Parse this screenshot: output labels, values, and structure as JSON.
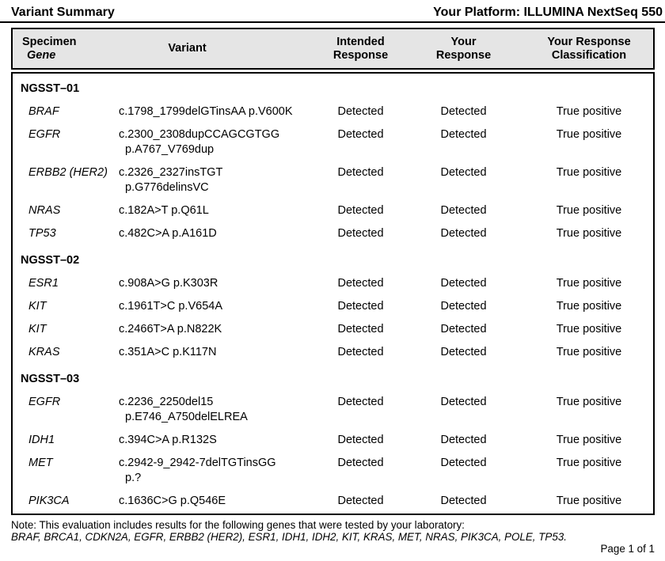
{
  "header": {
    "title": "Variant Summary",
    "platform": "Your Platform: ILLUMINA NextSeq 550"
  },
  "table": {
    "columns": {
      "specimen": "Specimen",
      "gene": "Gene",
      "variant": "Variant",
      "intended": "Intended\nResponse",
      "your_response": "Your\nResponse",
      "classification": "Your Response\nClassification"
    },
    "sections": [
      {
        "name": "NGSST–01",
        "rows": [
          {
            "gene": "BRAF",
            "variant": [
              "c.1798_1799delGTinsAA p.V600K"
            ],
            "intended": "Detected",
            "response": "Detected",
            "classification": "True positive"
          },
          {
            "gene": "EGFR",
            "variant": [
              "c.2300_2308dupCCAGCGTGG",
              "p.A767_V769dup"
            ],
            "intended": "Detected",
            "response": "Detected",
            "classification": "True positive"
          },
          {
            "gene": "ERBB2 (HER2)",
            "variant": [
              "c.2326_2327insTGT",
              "p.G776delinsVC"
            ],
            "intended": "Detected",
            "response": "Detected",
            "classification": "True positive"
          },
          {
            "gene": "NRAS",
            "variant": [
              "c.182A>T p.Q61L"
            ],
            "intended": "Detected",
            "response": "Detected",
            "classification": "True positive"
          },
          {
            "gene": "TP53",
            "variant": [
              "c.482C>A p.A161D"
            ],
            "intended": "Detected",
            "response": "Detected",
            "classification": "True positive"
          }
        ]
      },
      {
        "name": "NGSST–02",
        "rows": [
          {
            "gene": "ESR1",
            "variant": [
              "c.908A>G p.K303R"
            ],
            "intended": "Detected",
            "response": "Detected",
            "classification": "True positive"
          },
          {
            "gene": "KIT",
            "variant": [
              "c.1961T>C p.V654A"
            ],
            "intended": "Detected",
            "response": "Detected",
            "classification": "True positive"
          },
          {
            "gene": "KIT",
            "variant": [
              "c.2466T>A p.N822K"
            ],
            "intended": "Detected",
            "response": "Detected",
            "classification": "True positive"
          },
          {
            "gene": "KRAS",
            "variant": [
              "c.351A>C p.K117N"
            ],
            "intended": "Detected",
            "response": "Detected",
            "classification": "True positive"
          }
        ]
      },
      {
        "name": "NGSST–03",
        "rows": [
          {
            "gene": "EGFR",
            "variant": [
              "c.2236_2250del15",
              "p.E746_A750delELREA"
            ],
            "intended": "Detected",
            "response": "Detected",
            "classification": "True positive"
          },
          {
            "gene": "IDH1",
            "variant": [
              "c.394C>A p.R132S"
            ],
            "intended": "Detected",
            "response": "Detected",
            "classification": "True positive"
          },
          {
            "gene": "MET",
            "variant": [
              "c.2942-9_2942-7delTGTinsGG",
              "p.?"
            ],
            "intended": "Detected",
            "response": "Detected",
            "classification": "True positive"
          },
          {
            "gene": "PIK3CA",
            "variant": [
              "c.1636C>G p.Q546E"
            ],
            "intended": "Detected",
            "response": "Detected",
            "classification": "True positive"
          }
        ]
      }
    ]
  },
  "footer": {
    "note_line1": "Note: This evaluation includes results for the following genes that were tested by your laboratory:",
    "note_line2": "BRAF, BRCA1, CDKN2A, EGFR, ERBB2 (HER2), ESR1, IDH1, IDH2, KIT, KRAS, MET, NRAS, PIK3CA, POLE, TP53.",
    "page": "Page 1 of 1"
  },
  "colors": {
    "header_bg": "#e5e5e5",
    "border": "#000000",
    "text": "#000000"
  }
}
